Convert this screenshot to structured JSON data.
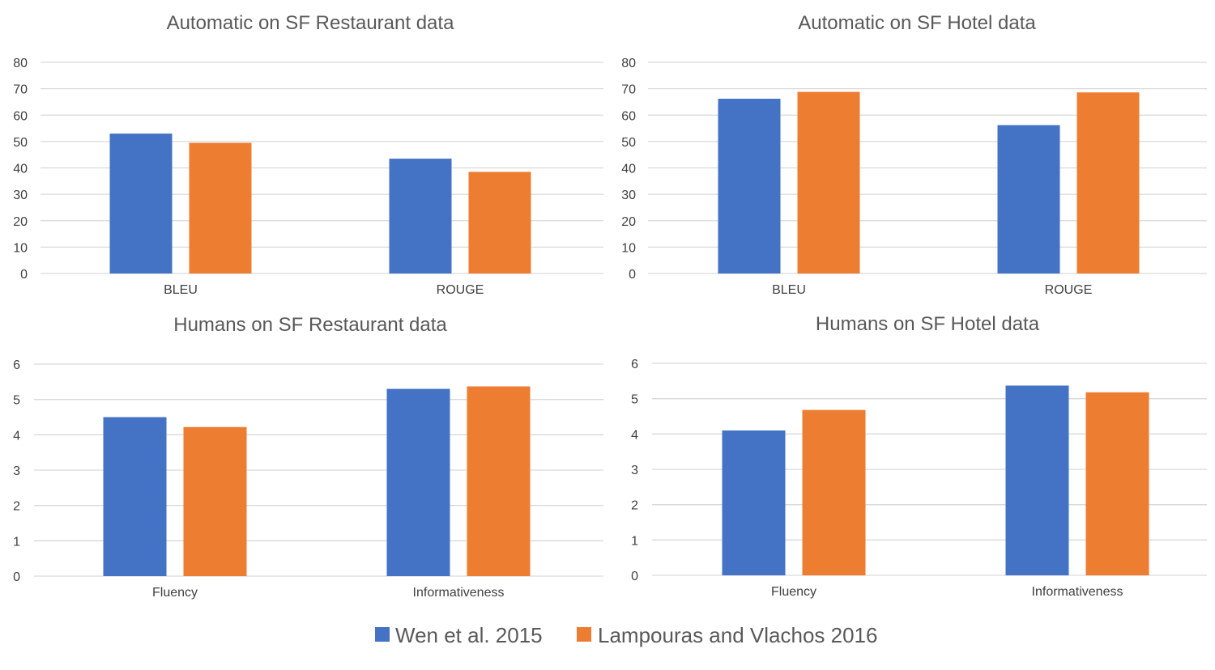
{
  "chart_data": [
    {
      "type": "bar",
      "title": "Automatic on SF Restaurant data",
      "categories": [
        "BLEU",
        "ROUGE"
      ],
      "series": [
        {
          "name": "Wen et al. 2015",
          "values": [
            53,
            43.5
          ]
        },
        {
          "name": "Lampouras and Vlachos 2016",
          "values": [
            49.5,
            38.5
          ]
        }
      ],
      "yticks": [
        "0",
        "10",
        "20",
        "30",
        "40",
        "50",
        "60",
        "70",
        "80"
      ],
      "ylim": [
        0,
        80
      ],
      "grid": true
    },
    {
      "type": "bar",
      "title": "Automatic on SF Hotel data",
      "categories": [
        "BLEU",
        "ROUGE"
      ],
      "series": [
        {
          "name": "Wen et al. 2015",
          "values": [
            66.2,
            56.2
          ]
        },
        {
          "name": "Lampouras and Vlachos 2016",
          "values": [
            68.8,
            68.6
          ]
        }
      ],
      "yticks": [
        "0",
        "10",
        "20",
        "30",
        "40",
        "50",
        "60",
        "70",
        "80"
      ],
      "ylim": [
        0,
        80
      ],
      "grid": true
    },
    {
      "type": "bar",
      "title": "Humans on SF Restaurant data",
      "categories": [
        "Fluency",
        "Informativeness"
      ],
      "series": [
        {
          "name": "Wen et al. 2015",
          "values": [
            4.5,
            5.3
          ]
        },
        {
          "name": "Lampouras and Vlachos 2016",
          "values": [
            4.22,
            5.37
          ]
        }
      ],
      "yticks": [
        "0",
        "1",
        "2",
        "3",
        "4",
        "5",
        "6"
      ],
      "ylim": [
        0,
        6
      ],
      "grid": true
    },
    {
      "type": "bar",
      "title": "Humans on SF Hotel data",
      "categories": [
        "Fluency",
        "Informativeness"
      ],
      "series": [
        {
          "name": "Wen et al. 2015",
          "values": [
            4.1,
            5.37
          ]
        },
        {
          "name": "Lampouras and Vlachos 2016",
          "values": [
            4.68,
            5.18
          ]
        }
      ],
      "yticks": [
        "0",
        "1",
        "2",
        "3",
        "4",
        "5",
        "6"
      ],
      "ylim": [
        0,
        6
      ],
      "grid": true
    }
  ],
  "legend": {
    "position": "bottom",
    "items": [
      {
        "label": "Wen et al. 2015",
        "color": "#4472C4"
      },
      {
        "label": "Lampouras and Vlachos 2016",
        "color": "#ED7D31"
      }
    ]
  },
  "colors": {
    "series": [
      "#4472C4",
      "#ED7D31"
    ],
    "grid": "#D9D9D9",
    "text": "#595959",
    "axis_text": "#404040"
  }
}
